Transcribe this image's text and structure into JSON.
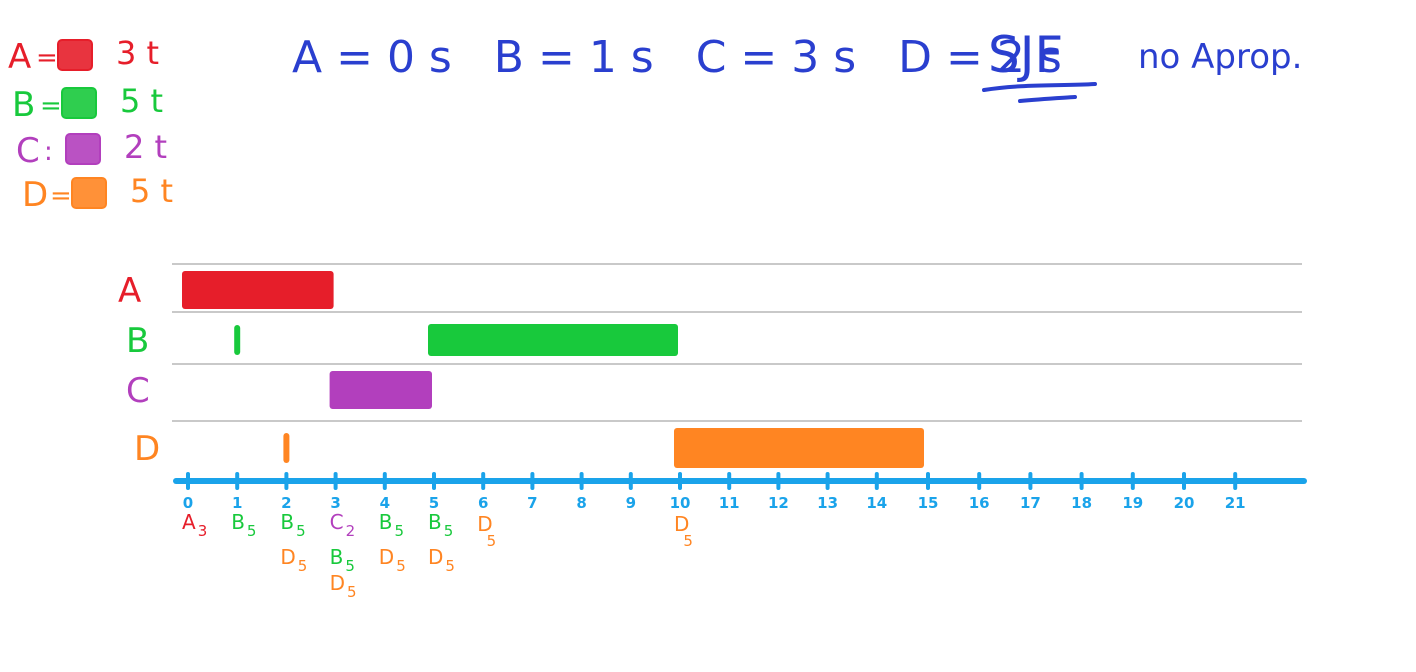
{
  "legend": {
    "items": [
      {
        "process": "A",
        "sep": "=",
        "color": "#e61e2a",
        "burst": "3 t"
      },
      {
        "process": "B",
        "sep": "=",
        "color": "#18c93c",
        "burst": "5 t"
      },
      {
        "process": "C",
        "sep": ":",
        "color": "#b23fbd",
        "burst": "2 t"
      },
      {
        "process": "D",
        "sep": "=",
        "color": "#ff8522",
        "burst": "5 t"
      }
    ]
  },
  "header": {
    "arrivals": "A = 0 s   B = 1 s   C = 3 s   D = 2 s",
    "algorithm": "SJF",
    "mode": "no Aprop."
  },
  "colors": {
    "ink_blue": "#2a3fcf",
    "axis_blue": "#1aa3ea",
    "grid_gray": "#c9c9c9",
    "A": "#e61e2a",
    "B": "#18c93c",
    "C": "#b23fbd",
    "D": "#ff8522"
  },
  "gantt": {
    "rows": [
      {
        "label": "A",
        "color": "#e61e2a"
      },
      {
        "label": "B",
        "color": "#18c93c"
      },
      {
        "label": "C",
        "color": "#b23fbd"
      },
      {
        "label": "D",
        "color": "#ff8522"
      }
    ],
    "bars": [
      {
        "process": "A",
        "start": 0,
        "end": 3
      },
      {
        "process": "B",
        "start": 5,
        "end": 10
      },
      {
        "process": "C",
        "start": 3,
        "end": 5
      },
      {
        "process": "D",
        "start": 10,
        "end": 15
      }
    ],
    "arrival_marks": [
      {
        "process": "B",
        "time": 1
      },
      {
        "process": "D",
        "time": 2
      }
    ],
    "ticks": [
      0,
      1,
      2,
      3,
      4,
      5,
      6,
      7,
      8,
      9,
      10,
      11,
      12,
      13,
      14,
      15,
      16,
      17,
      18,
      19,
      20,
      21
    ],
    "tick_labels": [
      "0",
      "1",
      "2",
      "3",
      "4",
      "5",
      "6",
      "7",
      "8",
      "9",
      "10",
      "11",
      "12",
      "13",
      "14",
      "15",
      "16",
      "17",
      "18",
      "19",
      "20",
      "21"
    ],
    "queue": [
      {
        "time": 0,
        "entries": [
          {
            "name": "A",
            "sub": "3",
            "color": "#e61e2a"
          }
        ]
      },
      {
        "time": 1,
        "entries": [
          {
            "name": "B",
            "sub": "5",
            "color": "#18c93c"
          }
        ]
      },
      {
        "time": 2,
        "entries": [
          {
            "name": "B",
            "sub": "5",
            "color": "#18c93c"
          },
          {
            "name": "D",
            "sub": "5",
            "color": "#ff8522"
          }
        ]
      },
      {
        "time": 3,
        "entries": [
          {
            "name": "C",
            "sub": "2",
            "color": "#b23fbd"
          },
          {
            "name": "B",
            "sub": "5",
            "color": "#18c93c"
          },
          {
            "name": "D",
            "sub": "5",
            "color": "#ff8522"
          }
        ]
      },
      {
        "time": 4,
        "entries": [
          {
            "name": "B",
            "sub": "5",
            "color": "#18c93c"
          },
          {
            "name": "D",
            "sub": "5",
            "color": "#ff8522"
          }
        ]
      },
      {
        "time": 5,
        "entries": [
          {
            "name": "B",
            "sub": "5",
            "color": "#18c93c"
          },
          {
            "name": "D",
            "sub": "5",
            "color": "#ff8522"
          }
        ]
      },
      {
        "time": 6,
        "entries": [
          {
            "name": "D",
            "sub": "5",
            "color": "#ff8522"
          }
        ]
      },
      {
        "time": 10,
        "entries": [
          {
            "name": "D",
            "sub": "5",
            "color": "#ff8522"
          }
        ]
      }
    ]
  }
}
